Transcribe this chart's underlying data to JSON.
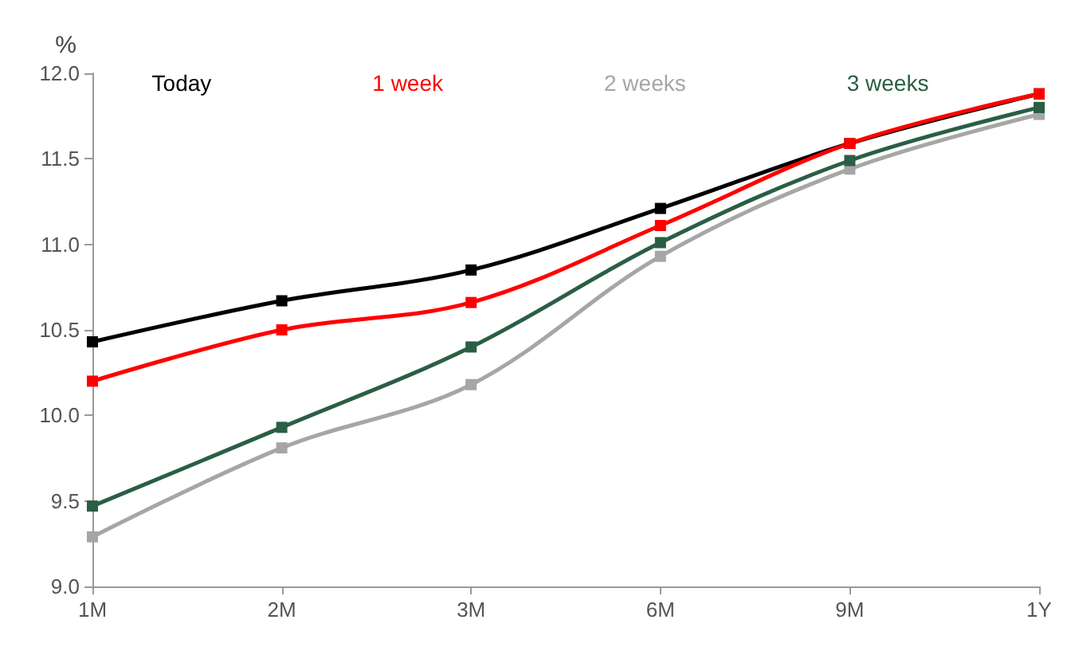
{
  "chart_data": {
    "type": "line",
    "ylabel": "%",
    "categories": [
      "1M",
      "2M",
      "3M",
      "6M",
      "9M",
      "1Y"
    ],
    "series": [
      {
        "name": "Today",
        "color": "#000000",
        "values": [
          10.43,
          10.67,
          10.85,
          11.21,
          11.59,
          11.88
        ]
      },
      {
        "name": "1 week",
        "color": "#ff0000",
        "values": [
          10.2,
          10.5,
          10.66,
          11.11,
          11.59,
          11.88
        ]
      },
      {
        "name": "2 weeks",
        "color": "#a6a6a6",
        "values": [
          9.29,
          9.81,
          10.18,
          10.93,
          11.44,
          11.76
        ]
      },
      {
        "name": "3 weeks",
        "color": "#2a5e45",
        "values": [
          9.47,
          9.93,
          10.4,
          11.01,
          11.49,
          11.8
        ]
      }
    ],
    "ylim": [
      9.0,
      12.0
    ],
    "yticks": [
      {
        "value": 9,
        "label": "9.0"
      },
      9.5,
      {
        "value": 10,
        "label": "10.0"
      },
      10.5,
      {
        "value": 11,
        "label": "11.0"
      },
      11.5,
      {
        "value": 12,
        "label": "12.0"
      }
    ],
    "grid": false,
    "legend": "top",
    "marker": "square",
    "line_style": "solid"
  }
}
